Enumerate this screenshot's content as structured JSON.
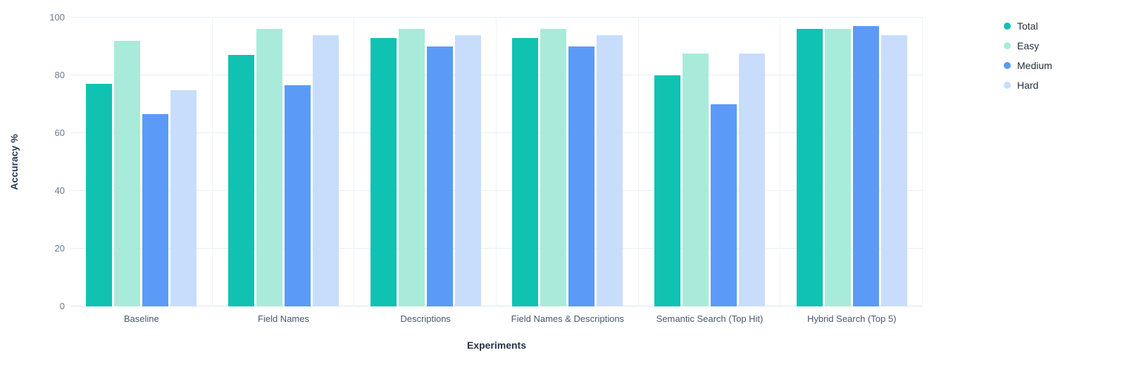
{
  "chart_data": {
    "type": "bar",
    "title": "",
    "xlabel": "Experiments",
    "ylabel": "Accuracy %",
    "ylim": [
      0,
      100
    ],
    "yticks": [
      0,
      20,
      40,
      60,
      80,
      100
    ],
    "grid": true,
    "legend_position": "right",
    "categories": [
      "Baseline",
      "Field Names",
      "Descriptions",
      "Field Names & Descriptions",
      "Semantic Search (Top Hit)",
      "Hybrid Search (Top 5)"
    ],
    "series": [
      {
        "name": "Total",
        "color": "#10c2b2",
        "values": [
          77,
          87,
          93,
          93,
          80,
          96
        ]
      },
      {
        "name": "Easy",
        "color": "#a9ebda",
        "values": [
          92,
          96,
          96,
          96,
          87.5,
          96
        ]
      },
      {
        "name": "Medium",
        "color": "#5b9bf7",
        "values": [
          66.5,
          76.5,
          90,
          90,
          70,
          97
        ]
      },
      {
        "name": "Hard",
        "color": "#c8ddfb",
        "values": [
          75,
          94,
          94,
          94,
          87.5,
          94
        ]
      }
    ]
  }
}
